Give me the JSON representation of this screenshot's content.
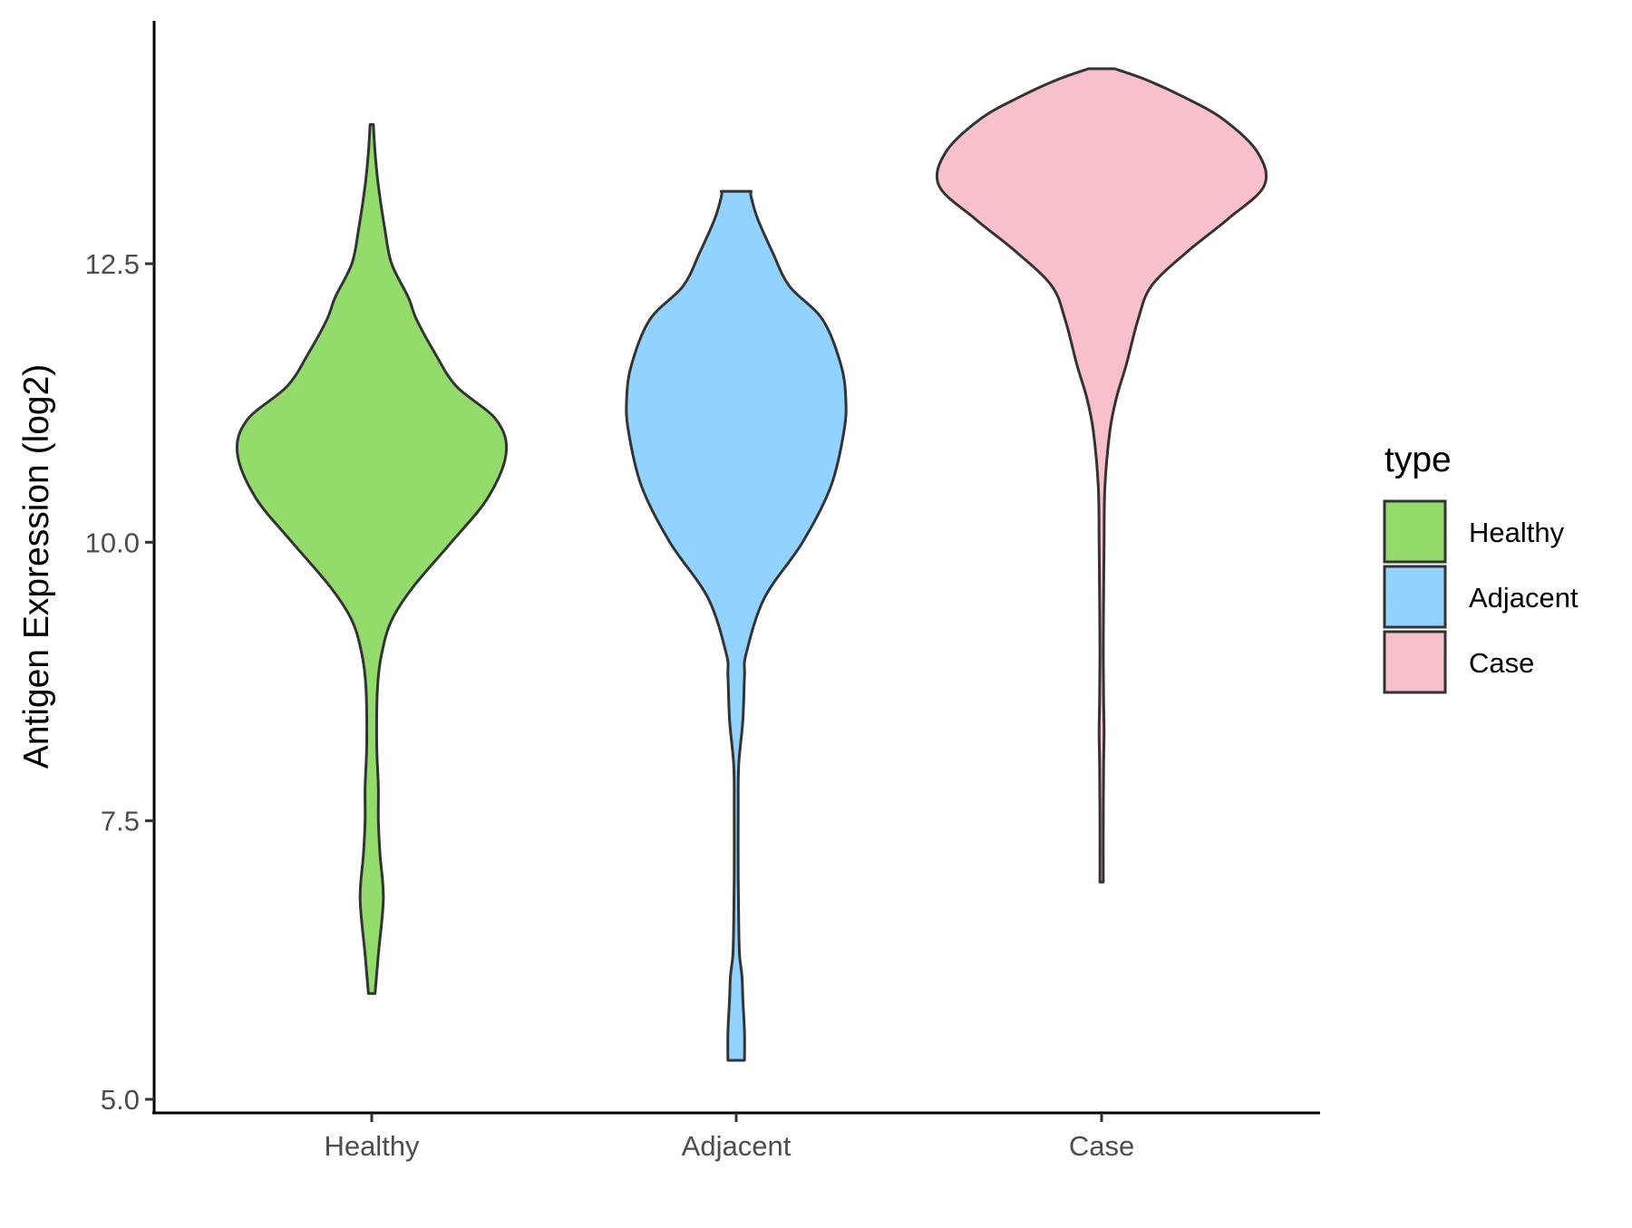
{
  "chart_data": {
    "type": "violin",
    "xlabel": "",
    "ylabel": "Antigen Expression (log2)",
    "ylim": [
      4.9,
      14.7
    ],
    "yticks": [
      5.0,
      7.5,
      10.0,
      12.5
    ],
    "ytick_labels": [
      "5.0",
      "7.5",
      "10.0",
      "12.5"
    ],
    "categories": [
      "Healthy",
      "Adjacent",
      "Case"
    ],
    "grid": false,
    "legend": {
      "title": "type",
      "position": "right",
      "entries": [
        "Healthy",
        "Adjacent",
        "Case"
      ]
    },
    "series": [
      {
        "name": "Healthy",
        "color": "#93DB6B",
        "min": 5.95,
        "max": 13.75,
        "profile": [
          [
            5.95,
            0.02
          ],
          [
            6.3,
            0.04
          ],
          [
            6.8,
            0.07
          ],
          [
            7.2,
            0.05
          ],
          [
            7.5,
            0.04
          ],
          [
            7.8,
            0.04
          ],
          [
            8.2,
            0.03
          ],
          [
            8.7,
            0.035
          ],
          [
            9.0,
            0.06
          ],
          [
            9.3,
            0.12
          ],
          [
            9.6,
            0.25
          ],
          [
            10.0,
            0.48
          ],
          [
            10.4,
            0.7
          ],
          [
            10.8,
            0.81
          ],
          [
            11.1,
            0.75
          ],
          [
            11.4,
            0.51
          ],
          [
            11.7,
            0.38
          ],
          [
            12.0,
            0.27
          ],
          [
            12.2,
            0.22
          ],
          [
            12.5,
            0.12
          ],
          [
            12.8,
            0.08
          ],
          [
            13.2,
            0.04
          ],
          [
            13.5,
            0.02
          ],
          [
            13.75,
            0.01
          ]
        ]
      },
      {
        "name": "Adjacent",
        "color": "#92D2FE",
        "min": 5.35,
        "max": 13.15,
        "profile": [
          [
            5.35,
            0.05
          ],
          [
            5.6,
            0.05
          ],
          [
            5.9,
            0.04
          ],
          [
            6.1,
            0.035
          ],
          [
            6.3,
            0.02
          ],
          [
            6.6,
            0.015
          ],
          [
            7.0,
            0.012
          ],
          [
            7.6,
            0.012
          ],
          [
            8.0,
            0.015
          ],
          [
            8.4,
            0.04
          ],
          [
            8.8,
            0.05
          ],
          [
            9.0,
            0.06
          ],
          [
            9.5,
            0.17
          ],
          [
            10.0,
            0.4
          ],
          [
            10.5,
            0.57
          ],
          [
            11.0,
            0.65
          ],
          [
            11.3,
            0.66
          ],
          [
            11.6,
            0.63
          ],
          [
            12.0,
            0.52
          ],
          [
            12.3,
            0.32
          ],
          [
            12.6,
            0.22
          ],
          [
            12.9,
            0.13
          ],
          [
            13.1,
            0.09
          ],
          [
            13.15,
            0.09
          ]
        ]
      },
      {
        "name": "Case",
        "color": "#F7C0CB",
        "min": 6.95,
        "max": 14.25,
        "profile": [
          [
            6.95,
            0.01
          ],
          [
            7.5,
            0.01
          ],
          [
            8.0,
            0.012
          ],
          [
            8.3,
            0.015
          ],
          [
            8.6,
            0.012
          ],
          [
            9.0,
            0.01
          ],
          [
            9.5,
            0.012
          ],
          [
            10.0,
            0.015
          ],
          [
            10.5,
            0.02
          ],
          [
            11.0,
            0.05
          ],
          [
            11.3,
            0.09
          ],
          [
            11.6,
            0.15
          ],
          [
            12.0,
            0.22
          ],
          [
            12.3,
            0.3
          ],
          [
            12.6,
            0.51
          ],
          [
            12.9,
            0.76
          ],
          [
            13.2,
            0.98
          ],
          [
            13.5,
            0.94
          ],
          [
            13.8,
            0.73
          ],
          [
            14.0,
            0.49
          ],
          [
            14.15,
            0.27
          ],
          [
            14.25,
            0.08
          ]
        ]
      }
    ]
  }
}
